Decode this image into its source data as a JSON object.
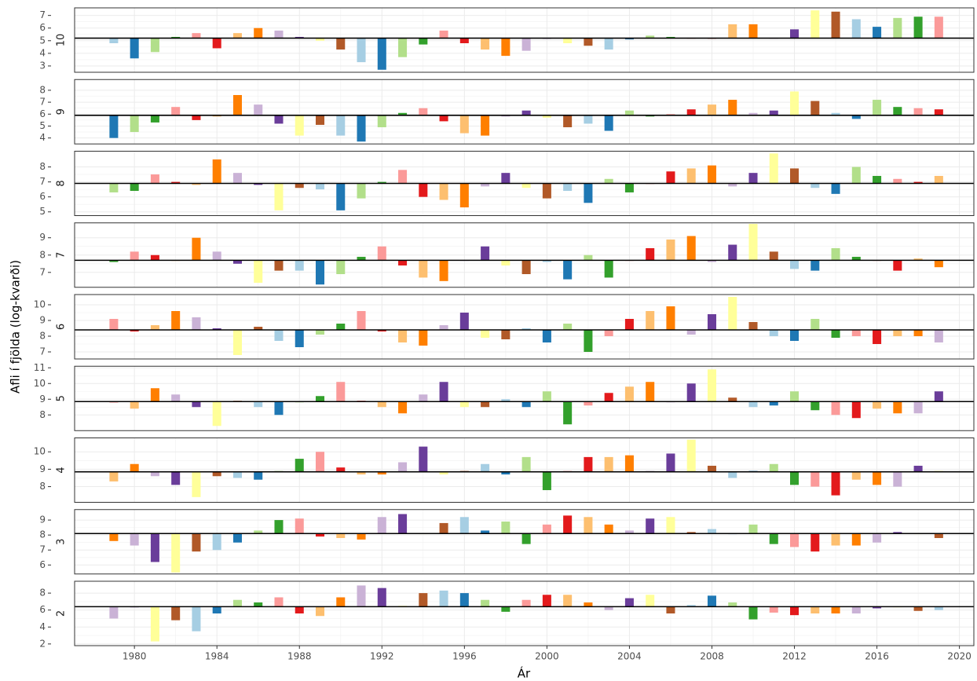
{
  "chart_data": {
    "type": "bar",
    "y_label": "Afli í fjölda (log-kvarði)",
    "x_label": "Ár",
    "x": [
      1979,
      1980,
      1981,
      1982,
      1983,
      1984,
      1985,
      1986,
      1987,
      1988,
      1989,
      1990,
      1991,
      1992,
      1993,
      1994,
      1995,
      1996,
      1997,
      1998,
      1999,
      2000,
      2001,
      2002,
      2003,
      2004,
      2005,
      2006,
      2007,
      2008,
      2009,
      2010,
      2011,
      2012,
      2013,
      2014,
      2015,
      2016,
      2017,
      2018,
      2019
    ],
    "xlim": [
      1977.1,
      2020.7
    ],
    "xticks": [
      1980,
      1984,
      1988,
      1992,
      1996,
      2000,
      2004,
      2008,
      2012,
      2016,
      2020
    ],
    "grid": true,
    "colors": [
      "#a6cee3",
      "#1f78b4",
      "#b2df8a",
      "#33a02c",
      "#fb9a99",
      "#e31a1c",
      "#fdbf6f",
      "#ff7f00",
      "#cab2d6",
      "#6a3d9a",
      "#ffff99",
      "#b15928"
    ],
    "panels": [
      {
        "label": "10",
        "ylim": [
          2.5,
          7.6
        ],
        "yticks": [
          3,
          4,
          5,
          6,
          7
        ],
        "baseline": 5.2,
        "values": [
          4.8,
          3.6,
          4.1,
          5.3,
          5.6,
          4.4,
          5.6,
          6.0,
          5.8,
          5.3,
          5.0,
          4.3,
          3.3,
          2.7,
          3.7,
          4.7,
          5.8,
          4.8,
          4.3,
          3.8,
          4.2,
          5.2,
          4.8,
          4.6,
          4.3,
          5.1,
          5.4,
          5.3,
          5.2,
          5.2,
          6.3,
          6.3,
          5.2,
          5.9,
          7.4,
          7.3,
          6.7,
          6.1,
          6.8,
          6.9,
          6.9
        ]
      },
      {
        "label": "9",
        "ylim": [
          3.5,
          8.9
        ],
        "yticks": [
          4,
          5,
          6,
          7,
          8
        ],
        "baseline": 5.9,
        "values": [
          4.0,
          4.5,
          5.3,
          6.6,
          5.5,
          5.8,
          7.6,
          6.8,
          5.2,
          4.2,
          5.1,
          4.2,
          3.7,
          4.9,
          6.1,
          6.5,
          5.4,
          4.4,
          4.2,
          5.8,
          6.3,
          5.7,
          4.9,
          5.2,
          4.6,
          6.3,
          5.8,
          6.0,
          6.4,
          6.8,
          7.2,
          6.1,
          6.3,
          7.9,
          7.1,
          6.1,
          5.6,
          7.2,
          6.6,
          6.5,
          6.4
        ]
      },
      {
        "label": "8",
        "ylim": [
          4.75,
          9.05
        ],
        "yticks": [
          5,
          6,
          7,
          8
        ],
        "baseline": 6.9,
        "values": [
          6.3,
          6.4,
          7.5,
          7.0,
          6.8,
          8.5,
          7.6,
          6.8,
          5.1,
          6.6,
          6.5,
          5.1,
          5.9,
          7.0,
          7.8,
          6.0,
          5.8,
          5.3,
          6.7,
          7.6,
          6.6,
          5.9,
          6.4,
          5.6,
          7.2,
          6.3,
          6.9,
          7.7,
          7.9,
          8.1,
          6.7,
          7.6,
          8.9,
          7.9,
          6.6,
          6.2,
          8.0,
          7.4,
          7.2,
          7.0,
          7.4
        ]
      },
      {
        "label": "7",
        "ylim": [
          6.14,
          9.86
        ],
        "yticks": [
          7,
          8,
          9
        ],
        "baseline": 7.7,
        "values": [
          7.6,
          8.2,
          8.0,
          7.7,
          9.0,
          8.2,
          7.5,
          6.4,
          7.1,
          7.1,
          6.3,
          6.9,
          7.9,
          8.5,
          7.4,
          6.7,
          6.5,
          7.7,
          8.5,
          7.4,
          6.9,
          7.6,
          6.6,
          8.0,
          6.7,
          7.7,
          8.4,
          8.9,
          9.1,
          7.6,
          8.6,
          9.8,
          8.2,
          7.2,
          7.1,
          8.4,
          7.9,
          7.7,
          7.1,
          7.8,
          7.3
        ]
      },
      {
        "label": "6",
        "ylim": [
          6.55,
          10.65
        ],
        "yticks": [
          7,
          8,
          9,
          10
        ],
        "baseline": 8.4,
        "values": [
          9.1,
          8.3,
          8.7,
          9.6,
          9.2,
          8.5,
          6.8,
          8.6,
          7.7,
          7.3,
          8.1,
          8.8,
          9.6,
          8.3,
          7.6,
          7.4,
          8.7,
          9.5,
          7.9,
          7.8,
          8.5,
          7.6,
          8.8,
          7.0,
          8.0,
          9.1,
          9.6,
          9.9,
          8.1,
          9.4,
          10.5,
          8.9,
          8.0,
          7.7,
          9.1,
          7.9,
          8.0,
          7.5,
          8.0,
          8.0,
          7.6
        ]
      },
      {
        "label": "5",
        "ylim": [
          7.0,
          11.1
        ],
        "yticks": [
          8,
          9,
          10,
          11
        ],
        "baseline": 8.85,
        "values": [
          8.8,
          8.4,
          9.7,
          9.3,
          8.5,
          7.3,
          8.9,
          8.5,
          8.0,
          8.8,
          9.2,
          10.1,
          8.9,
          8.5,
          8.1,
          9.3,
          10.1,
          8.5,
          8.5,
          9.0,
          8.5,
          9.5,
          7.4,
          8.6,
          9.4,
          9.8,
          10.1,
          8.8,
          10.0,
          10.9,
          9.1,
          8.5,
          8.6,
          9.5,
          8.3,
          8.0,
          7.8,
          8.4,
          8.1,
          8.1,
          9.5
        ]
      },
      {
        "label": "4",
        "ylim": [
          7.1,
          10.8
        ],
        "yticks": [
          8,
          9,
          10
        ],
        "baseline": 8.85,
        "values": [
          8.3,
          9.3,
          8.6,
          8.1,
          7.4,
          8.6,
          8.5,
          8.4,
          8.9,
          9.6,
          10.0,
          9.1,
          8.7,
          8.7,
          9.4,
          10.3,
          8.7,
          8.9,
          9.3,
          8.7,
          9.7,
          7.8,
          8.9,
          9.7,
          9.7,
          9.8,
          8.9,
          9.9,
          10.7,
          9.2,
          8.5,
          8.9,
          9.3,
          8.1,
          8.0,
          7.5,
          8.4,
          8.1,
          8.0,
          9.2,
          8.9
        ]
      },
      {
        "label": "3",
        "ylim": [
          5.4,
          9.7
        ],
        "yticks": [
          6,
          7,
          8,
          9
        ],
        "baseline": 8.1,
        "values": [
          7.6,
          7.3,
          6.2,
          5.5,
          6.9,
          7.0,
          7.5,
          8.3,
          9.0,
          9.1,
          7.9,
          7.8,
          7.7,
          9.2,
          9.4,
          8.1,
          8.8,
          9.2,
          8.3,
          8.9,
          7.4,
          8.7,
          9.3,
          9.2,
          8.7,
          8.3,
          9.1,
          9.2,
          8.2,
          8.4,
          8.1,
          8.7,
          7.4,
          7.2,
          6.9,
          7.3,
          7.3,
          7.5,
          8.2,
          8.1,
          7.8
        ]
      },
      {
        "label": "2",
        "ylim": [
          1.8,
          9.4
        ],
        "yticks": [
          2,
          4,
          6,
          8
        ],
        "baseline": 6.4,
        "values": [
          5.0,
          6.4,
          2.3,
          4.8,
          3.5,
          5.6,
          7.2,
          6.9,
          7.5,
          5.6,
          5.3,
          7.5,
          8.9,
          8.6,
          6.5,
          8.0,
          8.3,
          8.0,
          7.2,
          5.8,
          7.2,
          7.8,
          7.8,
          6.9,
          6.0,
          7.4,
          7.8,
          5.6,
          6.6,
          7.7,
          6.9,
          4.9,
          5.7,
          5.4,
          5.6,
          5.6,
          5.6,
          6.2,
          6.4,
          5.9,
          6.0
        ]
      }
    ]
  }
}
